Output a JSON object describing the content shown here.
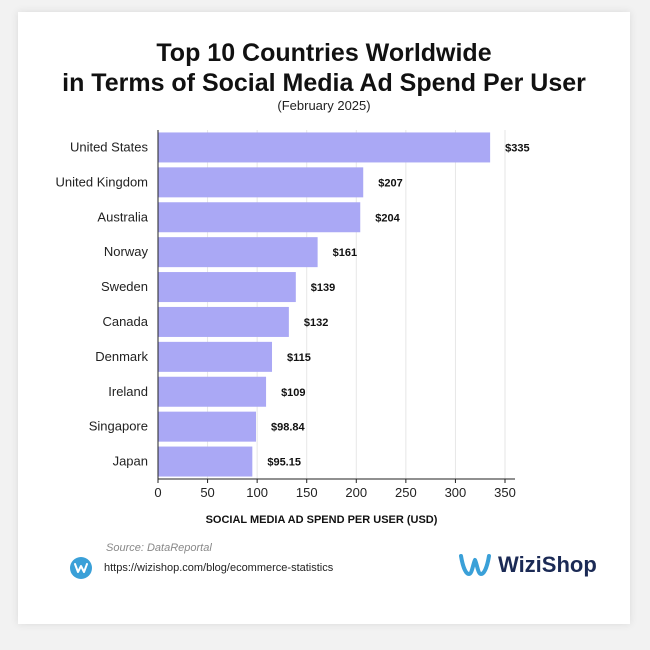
{
  "chart_data": {
    "type": "bar",
    "orientation": "horizontal",
    "title_line1": "Top 10 Countries Worldwide",
    "title_line2": "in Terms of Social Media Ad Spend Per User",
    "subtitle": "(February 2025)",
    "xlabel": "SOCIAL MEDIA AD SPEND PER USER (USD)",
    "ylabel": "",
    "xlim": [
      0,
      350
    ],
    "xticks": [
      0,
      50,
      100,
      150,
      200,
      250,
      300,
      350
    ],
    "grid": true,
    "bar_color": "#aaa8f5",
    "categories": [
      "United States",
      "United Kingdom",
      "Australia",
      "Norway",
      "Sweden",
      "Canada",
      "Denmark",
      "Ireland",
      "Singapore",
      "Japan"
    ],
    "values": [
      335,
      207,
      204,
      161,
      139,
      132,
      115,
      109,
      98.84,
      95.15
    ],
    "value_labels": [
      "$335",
      "$207",
      "$204",
      "$161",
      "$139",
      "$132",
      "$115",
      "$109",
      "$98.84",
      "$95.15"
    ]
  },
  "footer": {
    "source": "Source: DataReportal",
    "url": "https://wizishop.com/blog/ecommerce-statistics",
    "brand": "WiziShop",
    "brand_color": "#1b2a55",
    "accent_color": "#3aa0d8"
  }
}
